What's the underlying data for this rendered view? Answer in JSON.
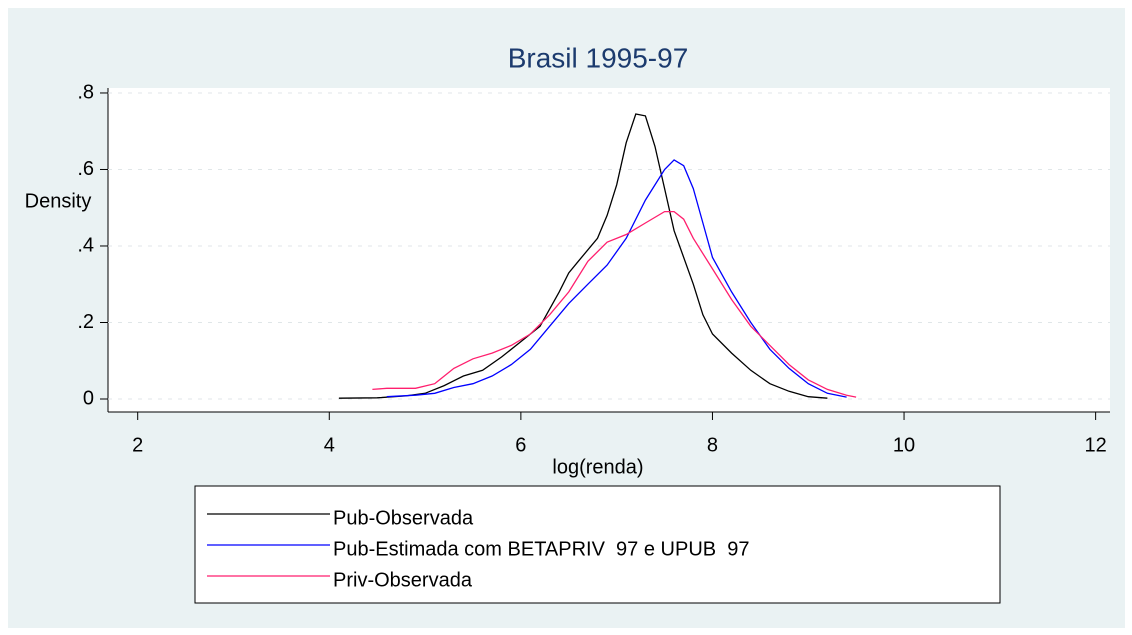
{
  "chart_data": {
    "type": "line",
    "title": "Brasil 1995-97",
    "xlabel": "log(renda)",
    "ylabel": "Density",
    "xlim": [
      1.69,
      12.15
    ],
    "ylim": [
      -0.034,
      0.813
    ],
    "xticks": [
      2,
      4,
      6,
      8,
      10,
      12
    ],
    "yticks": [
      0,
      {
        "value": 0.2,
        "label": ".2"
      },
      {
        "value": 0.4,
        "label": ".4"
      },
      {
        "value": 0.6,
        "label": ".6"
      },
      {
        "value": 0.8,
        "label": ".8"
      }
    ],
    "grid": true,
    "series": [
      {
        "name": "Pub-Observada",
        "color": "#000000",
        "x": [
          4.1,
          4.5,
          4.8,
          5.0,
          5.2,
          5.4,
          5.6,
          5.8,
          6.0,
          6.2,
          6.4,
          6.5,
          6.6,
          6.8,
          6.9,
          7.0,
          7.1,
          7.2,
          7.3,
          7.4,
          7.5,
          7.6,
          7.8,
          7.9,
          8.0,
          8.2,
          8.4,
          8.6,
          8.8,
          9.0,
          9.2
        ],
        "values": [
          0.002,
          0.003,
          0.008,
          0.015,
          0.035,
          0.06,
          0.075,
          0.11,
          0.15,
          0.19,
          0.28,
          0.33,
          0.36,
          0.42,
          0.48,
          0.56,
          0.67,
          0.745,
          0.74,
          0.66,
          0.55,
          0.44,
          0.3,
          0.22,
          0.17,
          0.12,
          0.075,
          0.04,
          0.02,
          0.006,
          0.002
        ]
      },
      {
        "name": "Pub-Estimada com BETAPRIV  97 e UPUB  97",
        "color": "#0000ff",
        "x": [
          4.6,
          4.9,
          5.1,
          5.3,
          5.5,
          5.7,
          5.9,
          6.1,
          6.3,
          6.5,
          6.7,
          6.9,
          7.1,
          7.3,
          7.5,
          7.6,
          7.7,
          7.8,
          7.9,
          8.0,
          8.2,
          8.4,
          8.6,
          8.8,
          9.0,
          9.2,
          9.4
        ],
        "values": [
          0.006,
          0.01,
          0.015,
          0.03,
          0.04,
          0.06,
          0.09,
          0.13,
          0.19,
          0.25,
          0.3,
          0.35,
          0.42,
          0.52,
          0.6,
          0.625,
          0.61,
          0.55,
          0.46,
          0.37,
          0.28,
          0.2,
          0.13,
          0.08,
          0.04,
          0.015,
          0.005
        ]
      },
      {
        "name": "Priv-Observada",
        "color": "#ff1f6e",
        "x": [
          4.45,
          4.6,
          4.9,
          5.1,
          5.3,
          5.5,
          5.7,
          5.9,
          6.1,
          6.3,
          6.5,
          6.7,
          6.9,
          7.1,
          7.3,
          7.5,
          7.6,
          7.7,
          7.8,
          8.0,
          8.2,
          8.4,
          8.6,
          8.8,
          9.0,
          9.2,
          9.4,
          9.5
        ],
        "values": [
          0.025,
          0.028,
          0.028,
          0.04,
          0.08,
          0.105,
          0.12,
          0.14,
          0.17,
          0.22,
          0.28,
          0.36,
          0.41,
          0.43,
          0.46,
          0.49,
          0.49,
          0.47,
          0.42,
          0.34,
          0.26,
          0.19,
          0.14,
          0.09,
          0.05,
          0.025,
          0.01,
          0.005
        ]
      }
    ]
  }
}
